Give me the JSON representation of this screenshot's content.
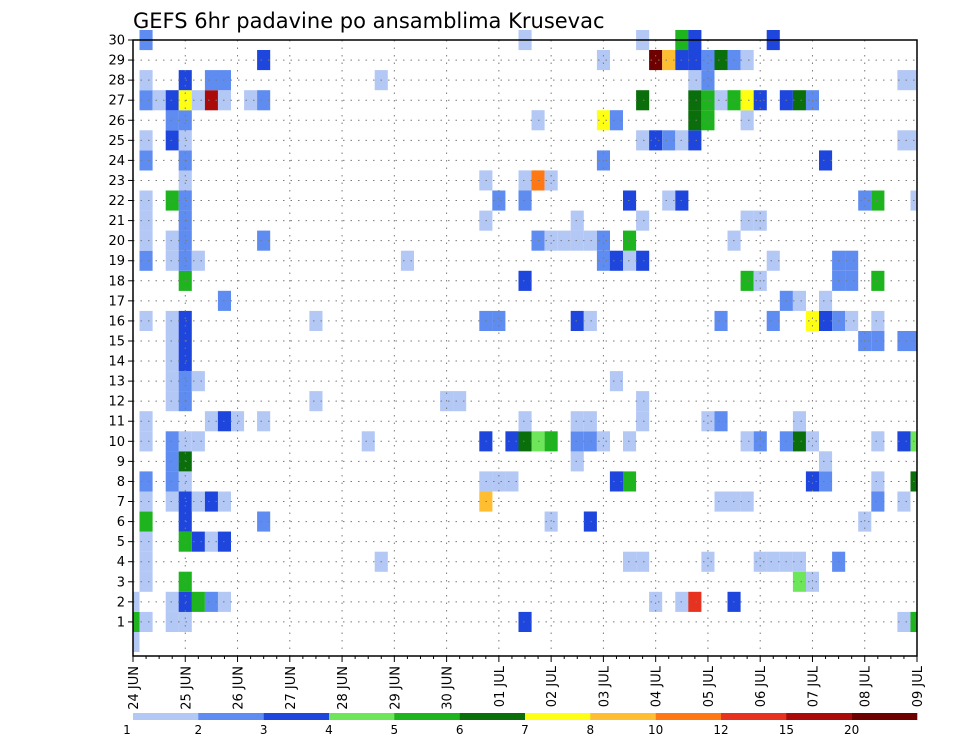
{
  "chart_data": {
    "type": "heatmap",
    "title": "GEFS 6hr padavine po ansamblima Krusevac",
    "ylabel": "",
    "xlabel": "",
    "y_ticks": [
      "1",
      "2",
      "3",
      "4",
      "5",
      "6",
      "7",
      "8",
      "9",
      "10",
      "11",
      "12",
      "13",
      "14",
      "15",
      "16",
      "17",
      "18",
      "19",
      "20",
      "21",
      "22",
      "23",
      "24",
      "25",
      "26",
      "27",
      "28",
      "29",
      "30"
    ],
    "x_ticks": [
      "24 JUN",
      "25 JUN",
      "26 JUN",
      "27 JUN",
      "28 JUN",
      "29 JUN",
      "30 JUN",
      "01 JUL",
      "02 JUL",
      "03 JUL",
      "04 JUL",
      "05 JUL",
      "06 JUL",
      "07 JUL",
      "08 JUL",
      "09 JUL"
    ],
    "x_range_steps": [
      0,
      60
    ],
    "y_range": [
      0,
      30
    ],
    "grid": true,
    "colorbar": {
      "levels": [
        "1",
        "2",
        "3",
        "4",
        "5",
        "6",
        "7",
        "8",
        "10",
        "12",
        "15",
        "20"
      ],
      "colors": [
        "#b4c8f5",
        "#5f8cf0",
        "#1e46dc",
        "#6ee65a",
        "#1eb41e",
        "#0a6e0a",
        "#ffff14",
        "#ffbe32",
        "#ff7814",
        "#e6321e",
        "#aa0a0a",
        "#6e0000"
      ]
    },
    "cells": [
      [
        0,
        0,
        1
      ],
      [
        0,
        1,
        5
      ],
      [
        1,
        1,
        1
      ],
      [
        3,
        1,
        1
      ],
      [
        4,
        1,
        1
      ],
      [
        4,
        2,
        2
      ],
      [
        5,
        2,
        5
      ],
      [
        6,
        2,
        2
      ],
      [
        7,
        2,
        1
      ],
      [
        30,
        1,
        3
      ],
      [
        59,
        1,
        1
      ],
      [
        60,
        1,
        5
      ],
      [
        0,
        2,
        1
      ],
      [
        3,
        2,
        1
      ],
      [
        4,
        2,
        3
      ],
      [
        40,
        2,
        1
      ],
      [
        42,
        2,
        1
      ],
      [
        43,
        2,
        10
      ],
      [
        46,
        2,
        3
      ],
      [
        1,
        3,
        1
      ],
      [
        4,
        3,
        5
      ],
      [
        52,
        3,
        1
      ],
      [
        51,
        3,
        4
      ],
      [
        1,
        4,
        1
      ],
      [
        19,
        4,
        1
      ],
      [
        38,
        4,
        1
      ],
      [
        39,
        4,
        1
      ],
      [
        44,
        4,
        1
      ],
      [
        48,
        4,
        1
      ],
      [
        49,
        4,
        1
      ],
      [
        50,
        4,
        1
      ],
      [
        51,
        4,
        1
      ],
      [
        54,
        4,
        2
      ],
      [
        1,
        5,
        1
      ],
      [
        4,
        5,
        5
      ],
      [
        5,
        5,
        3
      ],
      [
        6,
        5,
        1
      ],
      [
        7,
        5,
        3
      ],
      [
        1,
        6,
        5
      ],
      [
        4,
        6,
        3
      ],
      [
        10,
        6,
        2
      ],
      [
        32,
        6,
        1
      ],
      [
        35,
        6,
        3
      ],
      [
        56,
        6,
        1
      ],
      [
        1,
        7,
        1
      ],
      [
        3,
        7,
        1
      ],
      [
        4,
        7,
        3
      ],
      [
        5,
        7,
        1
      ],
      [
        6,
        7,
        3
      ],
      [
        7,
        7,
        1
      ],
      [
        27,
        7,
        8
      ],
      [
        45,
        7,
        1
      ],
      [
        46,
        7,
        1
      ],
      [
        47,
        7,
        1
      ],
      [
        57,
        7,
        2
      ],
      [
        59,
        7,
        1
      ],
      [
        1,
        8,
        2
      ],
      [
        3,
        8,
        2
      ],
      [
        4,
        8,
        1
      ],
      [
        27,
        8,
        1
      ],
      [
        28,
        8,
        1
      ],
      [
        29,
        8,
        1
      ],
      [
        37,
        8,
        3
      ],
      [
        38,
        8,
        5
      ],
      [
        52,
        8,
        3
      ],
      [
        53,
        8,
        2
      ],
      [
        57,
        8,
        1
      ],
      [
        60,
        8,
        6
      ],
      [
        3,
        9,
        2
      ],
      [
        4,
        9,
        6
      ],
      [
        34,
        9,
        1
      ],
      [
        53,
        9,
        1
      ],
      [
        1,
        10,
        1
      ],
      [
        3,
        10,
        2
      ],
      [
        4,
        10,
        1
      ],
      [
        5,
        10,
        1
      ],
      [
        18,
        10,
        1
      ],
      [
        27,
        10,
        3
      ],
      [
        29,
        10,
        3
      ],
      [
        30,
        10,
        6
      ],
      [
        31,
        10,
        4
      ],
      [
        32,
        10,
        5
      ],
      [
        34,
        10,
        2
      ],
      [
        35,
        10,
        2
      ],
      [
        36,
        10,
        1
      ],
      [
        38,
        10,
        1
      ],
      [
        47,
        10,
        1
      ],
      [
        48,
        10,
        2
      ],
      [
        50,
        10,
        2
      ],
      [
        51,
        10,
        6
      ],
      [
        52,
        10,
        1
      ],
      [
        57,
        10,
        1
      ],
      [
        59,
        10,
        3
      ],
      [
        60,
        10,
        4
      ],
      [
        1,
        11,
        1
      ],
      [
        6,
        11,
        1
      ],
      [
        7,
        11,
        3
      ],
      [
        8,
        11,
        1
      ],
      [
        10,
        11,
        1
      ],
      [
        30,
        11,
        1
      ],
      [
        34,
        11,
        1
      ],
      [
        35,
        11,
        1
      ],
      [
        39,
        11,
        1
      ],
      [
        44,
        11,
        1
      ],
      [
        45,
        11,
        2
      ],
      [
        51,
        11,
        1
      ],
      [
        24,
        12,
        1
      ],
      [
        25,
        12,
        1
      ],
      [
        14,
        12,
        1
      ],
      [
        39,
        12,
        1
      ],
      [
        3,
        12,
        1
      ],
      [
        4,
        12,
        2
      ],
      [
        3,
        13,
        1
      ],
      [
        4,
        13,
        2
      ],
      [
        5,
        13,
        1
      ],
      [
        37,
        13,
        1
      ],
      [
        3,
        14,
        1
      ],
      [
        4,
        14,
        3
      ],
      [
        3,
        15,
        1
      ],
      [
        4,
        15,
        3
      ],
      [
        56,
        15,
        2
      ],
      [
        57,
        15,
        2
      ],
      [
        59,
        15,
        2
      ],
      [
        60,
        15,
        2
      ],
      [
        1,
        16,
        1
      ],
      [
        3,
        16,
        1
      ],
      [
        4,
        16,
        3
      ],
      [
        14,
        16,
        1
      ],
      [
        45,
        16,
        2
      ],
      [
        27,
        16,
        2
      ],
      [
        28,
        16,
        2
      ],
      [
        34,
        16,
        3
      ],
      [
        35,
        16,
        1
      ],
      [
        49,
        16,
        2
      ],
      [
        52,
        16,
        7
      ],
      [
        53,
        16,
        3
      ],
      [
        54,
        16,
        2
      ],
      [
        55,
        16,
        1
      ],
      [
        57,
        16,
        1
      ],
      [
        7,
        17,
        2
      ],
      [
        50,
        17,
        2
      ],
      [
        51,
        17,
        1
      ],
      [
        53,
        17,
        1
      ],
      [
        4,
        18,
        5
      ],
      [
        30,
        18,
        3
      ],
      [
        47,
        18,
        5
      ],
      [
        48,
        18,
        1
      ],
      [
        54,
        18,
        2
      ],
      [
        55,
        18,
        2
      ],
      [
        57,
        18,
        5
      ],
      [
        1,
        19,
        2
      ],
      [
        3,
        19,
        1
      ],
      [
        4,
        19,
        2
      ],
      [
        5,
        19,
        1
      ],
      [
        21,
        19,
        1
      ],
      [
        36,
        19,
        2
      ],
      [
        37,
        19,
        3
      ],
      [
        38,
        19,
        1
      ],
      [
        39,
        19,
        3
      ],
      [
        49,
        19,
        1
      ],
      [
        54,
        19,
        2
      ],
      [
        55,
        19,
        2
      ],
      [
        1,
        20,
        1
      ],
      [
        3,
        20,
        1
      ],
      [
        4,
        20,
        2
      ],
      [
        10,
        20,
        2
      ],
      [
        31,
        20,
        2
      ],
      [
        32,
        20,
        1
      ],
      [
        33,
        20,
        1
      ],
      [
        34,
        20,
        1
      ],
      [
        35,
        20,
        1
      ],
      [
        36,
        20,
        2
      ],
      [
        38,
        20,
        5
      ],
      [
        46,
        20,
        1
      ],
      [
        1,
        21,
        1
      ],
      [
        4,
        21,
        2
      ],
      [
        27,
        21,
        1
      ],
      [
        34,
        21,
        1
      ],
      [
        39,
        21,
        1
      ],
      [
        47,
        21,
        1
      ],
      [
        48,
        21,
        1
      ],
      [
        1,
        22,
        1
      ],
      [
        3,
        22,
        5
      ],
      [
        4,
        22,
        2
      ],
      [
        28,
        22,
        2
      ],
      [
        30,
        22,
        2
      ],
      [
        38,
        22,
        3
      ],
      [
        41,
        22,
        1
      ],
      [
        42,
        22,
        3
      ],
      [
        56,
        22,
        2
      ],
      [
        57,
        22,
        5
      ],
      [
        60,
        22,
        1
      ],
      [
        4,
        23,
        1
      ],
      [
        27,
        23,
        1
      ],
      [
        30,
        23,
        1
      ],
      [
        31,
        23,
        9
      ],
      [
        32,
        23,
        1
      ],
      [
        1,
        24,
        2
      ],
      [
        4,
        24,
        2
      ],
      [
        36,
        24,
        2
      ],
      [
        53,
        24,
        3
      ],
      [
        1,
        25,
        1
      ],
      [
        3,
        25,
        3
      ],
      [
        4,
        25,
        1
      ],
      [
        39,
        25,
        1
      ],
      [
        40,
        25,
        3
      ],
      [
        41,
        25,
        2
      ],
      [
        42,
        25,
        1
      ],
      [
        43,
        25,
        3
      ],
      [
        60,
        25,
        1
      ],
      [
        59,
        25,
        1
      ],
      [
        3,
        26,
        2
      ],
      [
        4,
        26,
        2
      ],
      [
        31,
        26,
        1
      ],
      [
        36,
        26,
        7
      ],
      [
        37,
        26,
        2
      ],
      [
        43,
        26,
        6
      ],
      [
        44,
        26,
        5
      ],
      [
        47,
        26,
        1
      ],
      [
        1,
        27,
        2
      ],
      [
        2,
        27,
        1
      ],
      [
        3,
        27,
        3
      ],
      [
        4,
        27,
        7
      ],
      [
        5,
        27,
        1
      ],
      [
        6,
        27,
        11
      ],
      [
        7,
        27,
        1
      ],
      [
        9,
        27,
        1
      ],
      [
        10,
        27,
        2
      ],
      [
        39,
        27,
        6
      ],
      [
        43,
        27,
        6
      ],
      [
        44,
        27,
        5
      ],
      [
        45,
        27,
        1
      ],
      [
        46,
        27,
        5
      ],
      [
        47,
        27,
        7
      ],
      [
        48,
        27,
        3
      ],
      [
        50,
        27,
        3
      ],
      [
        51,
        27,
        6
      ],
      [
        52,
        27,
        2
      ],
      [
        1,
        28,
        1
      ],
      [
        4,
        28,
        3
      ],
      [
        6,
        28,
        2
      ],
      [
        7,
        28,
        2
      ],
      [
        19,
        28,
        1
      ],
      [
        43,
        28,
        1
      ],
      [
        44,
        28,
        2
      ],
      [
        59,
        28,
        1
      ],
      [
        60,
        28,
        1
      ],
      [
        10,
        29,
        3
      ],
      [
        36,
        29,
        1
      ],
      [
        40,
        29,
        12
      ],
      [
        41,
        29,
        8
      ],
      [
        42,
        29,
        3
      ],
      [
        43,
        29,
        3
      ],
      [
        44,
        29,
        2
      ],
      [
        45,
        29,
        6
      ],
      [
        46,
        29,
        2
      ],
      [
        47,
        29,
        1
      ],
      [
        1,
        30,
        2
      ],
      [
        30,
        30,
        1
      ],
      [
        39,
        30,
        1
      ],
      [
        42,
        30,
        5
      ],
      [
        43,
        30,
        3
      ],
      [
        49,
        30,
        3
      ]
    ]
  }
}
